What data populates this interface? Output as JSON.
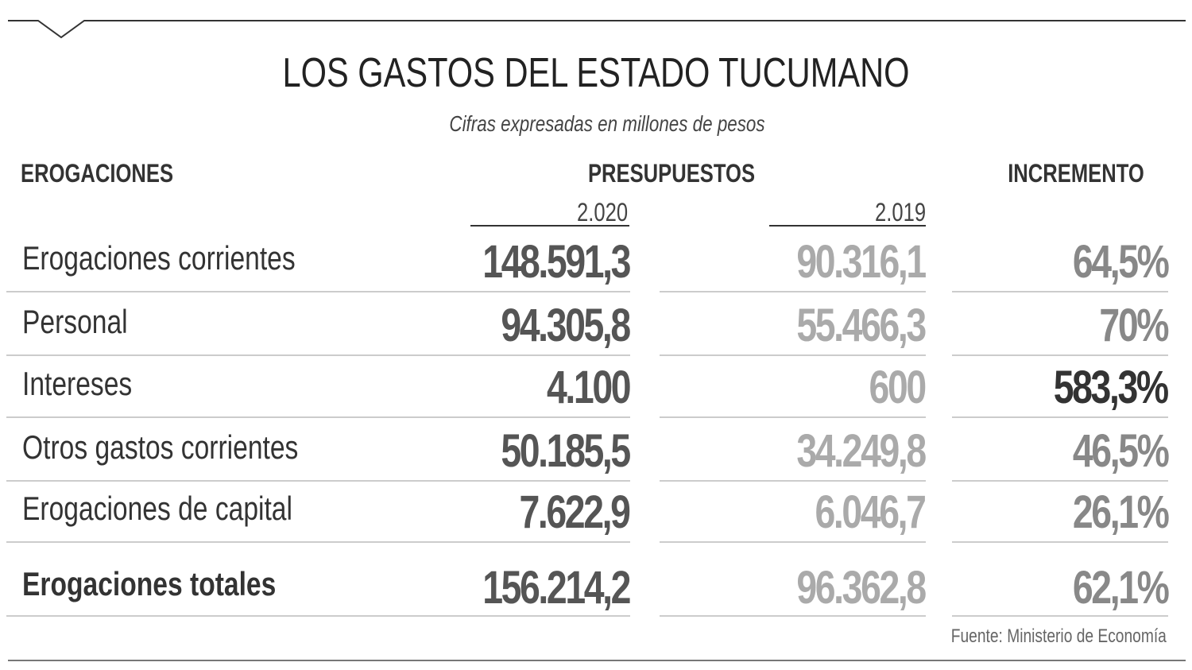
{
  "header": {
    "title": "LOS GASTOS DEL ESTADO TUCUMANO",
    "subtitle": "Cifras expresadas en millones de pesos"
  },
  "table": {
    "columns": [
      "EROGACIONES",
      "PRESUPUESTOS",
      "INCREMENTO"
    ],
    "years": [
      "2.020",
      "2.019"
    ],
    "rows": [
      [
        "Erogaciones corrientes",
        "148.591,3",
        "90.316,1",
        "64,5%"
      ],
      [
        "Personal",
        "94.305,8",
        "55.466,3",
        "70%"
      ],
      [
        "Intereses",
        "4.100",
        "600",
        "583,3%"
      ],
      [
        "Otros gastos corrientes",
        "50.185,5",
        "34.249,8",
        "46,5%"
      ],
      [
        "Erogaciones de capital",
        "7.622,9",
        "6.046,7",
        "26,1%"
      ],
      [
        "Erogaciones totales",
        "156.214,2",
        "96.362,8",
        "62,1%"
      ]
    ]
  },
  "source": "Fuente: Ministerio de Economía"
}
